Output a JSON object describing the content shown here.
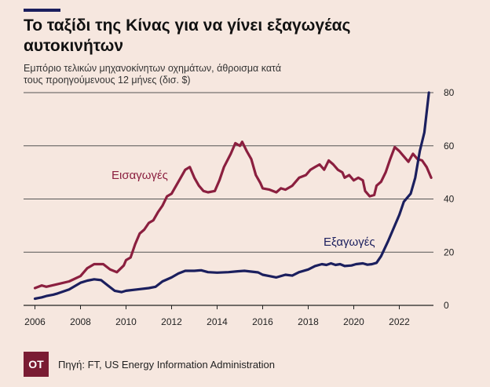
{
  "header": {
    "title": "Το ταξίδι της Κίνας για να γίνει εξαγωγέας αυτοκινήτων",
    "subtitle": "Εμπόριο τελικών μηχανοκίνητων οχημάτων, άθροισμα κατά τους προηγούμενους 12 μήνες (δισ. $)"
  },
  "footer": {
    "logo_text": "OT",
    "source": "Πηγή: FT, US Energy Information Administration"
  },
  "chart_data": {
    "type": "line",
    "title": "Το ταξίδι της Κίνας για να γίνει εξαγωγέας αυτοκινήτων",
    "subtitle": "Εμπόριο τελικών μηχανοκίνητων οχημάτων, άθροισμα κατά τους προηγούμενους 12 μήνες (δισ. $)",
    "xlim": [
      2005.5,
      2023.5
    ],
    "ylim": [
      0,
      80
    ],
    "x_ticks": [
      "2006",
      "2008",
      "2010",
      "2012",
      "2014",
      "2016",
      "2018",
      "2020",
      "2022"
    ],
    "y_ticks": [
      "0",
      "20",
      "40",
      "60",
      "80"
    ],
    "grid": "horizontal",
    "y_axis_side": "right",
    "series": [
      {
        "name": "Εισαγωγές",
        "color": "#8b1f3f",
        "points": [
          [
            2006.0,
            6.5
          ],
          [
            2006.3,
            7.5
          ],
          [
            2006.5,
            7
          ],
          [
            2007.0,
            8
          ],
          [
            2007.5,
            9
          ],
          [
            2008.0,
            11
          ],
          [
            2008.3,
            14
          ],
          [
            2008.6,
            15.5
          ],
          [
            2009.0,
            15.5
          ],
          [
            2009.3,
            13.5
          ],
          [
            2009.6,
            12.5
          ],
          [
            2009.9,
            15
          ],
          [
            2010.0,
            17
          ],
          [
            2010.2,
            18
          ],
          [
            2010.4,
            23
          ],
          [
            2010.6,
            27
          ],
          [
            2010.8,
            28.5
          ],
          [
            2011.0,
            31
          ],
          [
            2011.2,
            32
          ],
          [
            2011.4,
            35
          ],
          [
            2011.6,
            37.5
          ],
          [
            2011.8,
            41
          ],
          [
            2012.0,
            42
          ],
          [
            2012.2,
            45
          ],
          [
            2012.4,
            48
          ],
          [
            2012.6,
            51
          ],
          [
            2012.8,
            52
          ],
          [
            2013.0,
            48
          ],
          [
            2013.2,
            45
          ],
          [
            2013.4,
            43
          ],
          [
            2013.6,
            42.5
          ],
          [
            2013.9,
            43
          ],
          [
            2014.1,
            47
          ],
          [
            2014.3,
            52
          ],
          [
            2014.6,
            57
          ],
          [
            2014.8,
            61
          ],
          [
            2015.0,
            60
          ],
          [
            2015.1,
            61.5
          ],
          [
            2015.3,
            58
          ],
          [
            2015.5,
            55
          ],
          [
            2015.7,
            49
          ],
          [
            2015.9,
            46
          ],
          [
            2016.0,
            44
          ],
          [
            2016.3,
            43.5
          ],
          [
            2016.6,
            42.5
          ],
          [
            2016.8,
            44
          ],
          [
            2017.0,
            43.5
          ],
          [
            2017.3,
            45
          ],
          [
            2017.6,
            48
          ],
          [
            2017.9,
            49
          ],
          [
            2018.1,
            51
          ],
          [
            2018.3,
            52
          ],
          [
            2018.5,
            53
          ],
          [
            2018.7,
            51
          ],
          [
            2018.9,
            54.5
          ],
          [
            2019.1,
            53
          ],
          [
            2019.3,
            51
          ],
          [
            2019.5,
            50
          ],
          [
            2019.6,
            48
          ],
          [
            2019.8,
            49
          ],
          [
            2020.0,
            47
          ],
          [
            2020.2,
            48
          ],
          [
            2020.4,
            47
          ],
          [
            2020.5,
            43
          ],
          [
            2020.7,
            41
          ],
          [
            2020.9,
            41.5
          ],
          [
            2021.0,
            45
          ],
          [
            2021.2,
            46.5
          ],
          [
            2021.4,
            50
          ],
          [
            2021.6,
            55
          ],
          [
            2021.8,
            59.5
          ],
          [
            2022.0,
            58
          ],
          [
            2022.2,
            56
          ],
          [
            2022.4,
            54
          ],
          [
            2022.6,
            57
          ],
          [
            2022.8,
            55
          ],
          [
            2023.0,
            54.5
          ],
          [
            2023.2,
            52
          ],
          [
            2023.4,
            48
          ]
        ]
      },
      {
        "name": "Εξαγωγές",
        "color": "#1b1f5e",
        "points": [
          [
            2006.0,
            2.5
          ],
          [
            2006.3,
            3
          ],
          [
            2006.5,
            3.5
          ],
          [
            2006.8,
            4
          ],
          [
            2007.0,
            4.5
          ],
          [
            2007.5,
            6
          ],
          [
            2008.0,
            8.5
          ],
          [
            2008.3,
            9.3
          ],
          [
            2008.6,
            9.8
          ],
          [
            2008.9,
            9.5
          ],
          [
            2009.2,
            7.5
          ],
          [
            2009.5,
            5.5
          ],
          [
            2009.8,
            5
          ],
          [
            2010.0,
            5.5
          ],
          [
            2010.5,
            6
          ],
          [
            2011.0,
            6.5
          ],
          [
            2011.3,
            7
          ],
          [
            2011.6,
            9
          ],
          [
            2012.0,
            10.5
          ],
          [
            2012.3,
            12
          ],
          [
            2012.6,
            13
          ],
          [
            2013.0,
            13
          ],
          [
            2013.3,
            13.2
          ],
          [
            2013.6,
            12.5
          ],
          [
            2014.0,
            12.3
          ],
          [
            2014.5,
            12.5
          ],
          [
            2014.9,
            12.8
          ],
          [
            2015.2,
            13
          ],
          [
            2015.5,
            12.7
          ],
          [
            2015.8,
            12.4
          ],
          [
            2016.0,
            11.5
          ],
          [
            2016.3,
            11
          ],
          [
            2016.6,
            10.5
          ],
          [
            2017.0,
            11.5
          ],
          [
            2017.3,
            11.2
          ],
          [
            2017.6,
            12.5
          ],
          [
            2018.0,
            13.5
          ],
          [
            2018.3,
            14.8
          ],
          [
            2018.6,
            15.5
          ],
          [
            2018.8,
            15.2
          ],
          [
            2019.0,
            15.8
          ],
          [
            2019.2,
            15.2
          ],
          [
            2019.4,
            15.5
          ],
          [
            2019.6,
            14.8
          ],
          [
            2019.9,
            15
          ],
          [
            2020.1,
            15.5
          ],
          [
            2020.4,
            15.8
          ],
          [
            2020.6,
            15.3
          ],
          [
            2020.8,
            15.5
          ],
          [
            2021.0,
            16
          ],
          [
            2021.2,
            18.5
          ],
          [
            2021.5,
            24
          ],
          [
            2021.8,
            30
          ],
          [
            2022.0,
            34
          ],
          [
            2022.2,
            39
          ],
          [
            2022.5,
            42
          ],
          [
            2022.7,
            48
          ],
          [
            2022.9,
            58
          ],
          [
            2023.1,
            65
          ],
          [
            2023.3,
            80
          ]
        ]
      }
    ]
  }
}
